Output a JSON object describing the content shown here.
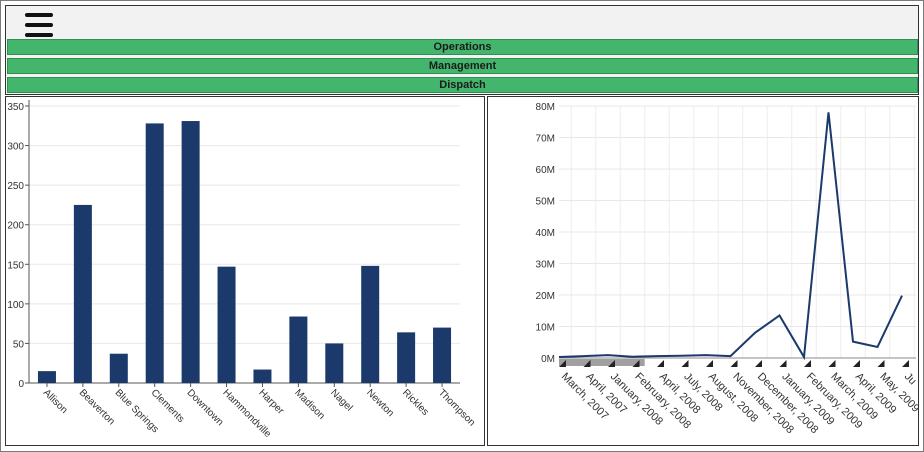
{
  "nav": {
    "menu_icon": "hamburger-menu-icon",
    "items": [
      {
        "label": "Operations"
      },
      {
        "label": "Management"
      },
      {
        "label": "Dispatch"
      }
    ]
  },
  "colors": {
    "nav_green": "#43b56c",
    "series_navy": "#1b3a6b",
    "scrollbar_gray": "#a0a0a0"
  },
  "chart_data": [
    {
      "type": "bar",
      "categories": [
        "Allison",
        "Beaverton",
        "Blue Springs",
        "Clements",
        "Downtown",
        "Hammondville",
        "Harper",
        "Madison",
        "Nagel",
        "Newton",
        "Rickles",
        "Thompson"
      ],
      "values": [
        15,
        225,
        37,
        328,
        331,
        147,
        17,
        84,
        50,
        148,
        64,
        70
      ],
      "yticks": [
        0,
        50,
        100,
        150,
        200,
        250,
        300,
        350
      ],
      "ylim": [
        0,
        350
      ],
      "grid": true
    },
    {
      "type": "line",
      "x": [
        "March, 2007",
        "April, 2007",
        "January, 2008",
        "February, 2008",
        "April, 2008",
        "July, 2008",
        "August, 2008",
        "November, 2008",
        "December, 2008",
        "January, 2009",
        "February, 2009",
        "March, 2009",
        "April, 2009",
        "May, 2009",
        "Ju"
      ],
      "values": [
        0.3,
        0.6,
        0.9,
        0.4,
        0.6,
        0.7,
        0.9,
        0.6,
        8.0,
        13.5,
        0.3,
        78.0,
        5.2,
        3.5,
        19.8
      ],
      "yticks": [
        "0M",
        "10M",
        "20M",
        "30M",
        "40M",
        "50M",
        "60M",
        "70M",
        "80M"
      ],
      "ylim": [
        0,
        80
      ],
      "grid": true,
      "scrollbar_fraction": 0.24
    }
  ]
}
